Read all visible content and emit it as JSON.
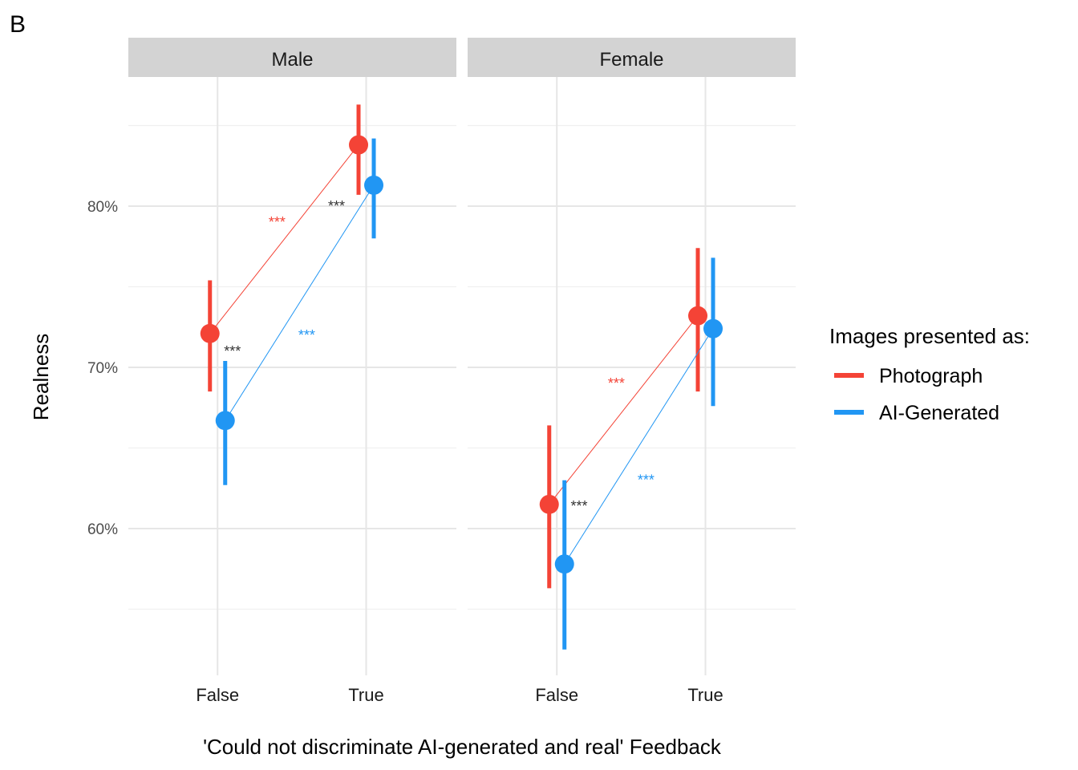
{
  "panel_label": "B",
  "chart_data": {
    "type": "line",
    "facets": [
      "Male",
      "Female"
    ],
    "x_categories": [
      "False",
      "True"
    ],
    "xlabel": "'Could not discriminate AI-generated and real' Feedback",
    "ylabel": "Realness",
    "y_ticks": [
      0.6,
      0.7,
      0.8
    ],
    "y_tick_labels": [
      "60%",
      "70%",
      "80%"
    ],
    "ylim": [
      0.5,
      0.89
    ],
    "grid": true,
    "legend": {
      "title": "Images presented as:",
      "placement": "right",
      "entries": [
        "Photograph",
        "AI-Generated"
      ]
    },
    "series": [
      {
        "name": "Photograph",
        "color": "#F44336",
        "Male": {
          "mean": [
            0.721,
            0.838
          ],
          "lower": [
            0.685,
            0.807
          ],
          "upper": [
            0.754,
            0.863
          ]
        },
        "Female": {
          "mean": [
            0.615,
            0.732
          ],
          "lower": [
            0.563,
            0.685
          ],
          "upper": [
            0.664,
            0.774
          ]
        }
      },
      {
        "name": "AI-Generated",
        "color": "#2196F3",
        "Male": {
          "mean": [
            0.667,
            0.813
          ],
          "lower": [
            0.627,
            0.78
          ],
          "upper": [
            0.704,
            0.842
          ]
        },
        "Female": {
          "mean": [
            0.578,
            0.724
          ],
          "lower": [
            0.525,
            0.676
          ],
          "upper": [
            0.63,
            0.768
          ]
        }
      }
    ],
    "annotations": [
      {
        "facet": "Male",
        "text": "***",
        "color": "#F44336",
        "x": 1.4,
        "y": 0.79
      },
      {
        "facet": "Male",
        "text": "***",
        "color": "#2196F3",
        "x": 1.6,
        "y": 0.72
      },
      {
        "facet": "Male",
        "text": "***",
        "color": "#333333",
        "x": 1.1,
        "y": 0.71
      },
      {
        "facet": "Male",
        "text": "***",
        "color": "#333333",
        "x": 1.8,
        "y": 0.8
      },
      {
        "facet": "Female",
        "text": "***",
        "color": "#F44336",
        "x": 1.4,
        "y": 0.69
      },
      {
        "facet": "Female",
        "text": "***",
        "color": "#2196F3",
        "x": 1.6,
        "y": 0.63
      },
      {
        "facet": "Female",
        "text": "***",
        "color": "#333333",
        "x": 1.15,
        "y": 0.614
      }
    ]
  }
}
